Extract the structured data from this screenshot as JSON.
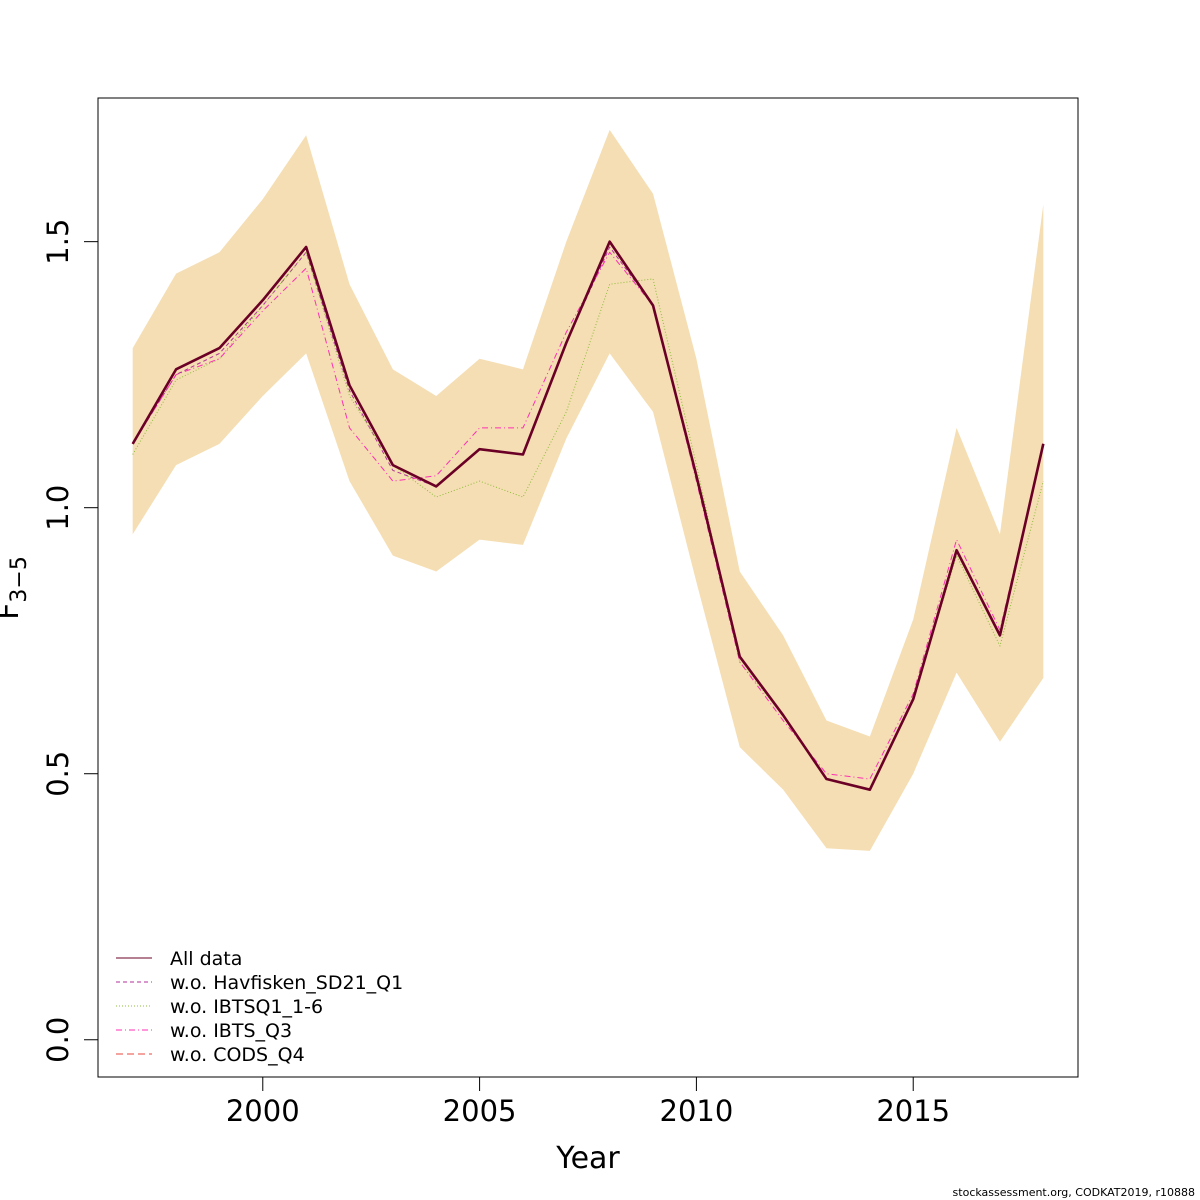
{
  "chart_data": {
    "type": "line",
    "xlabel": "Year",
    "ylabel_main": "F",
    "ylabel_sub": "3−5",
    "xlim": [
      1996.2,
      2018.8
    ],
    "ylim": [
      -0.07,
      1.77
    ],
    "x_ticks": [
      2000,
      2005,
      2010,
      2015
    ],
    "y_ticks": [
      0.0,
      0.5,
      1.0,
      1.5
    ],
    "y_tick_labels": [
      "0.0",
      "0.5",
      "1.0",
      "1.5"
    ],
    "x": [
      1997,
      1998,
      1999,
      2000,
      2001,
      2002,
      2003,
      2004,
      2005,
      2006,
      2007,
      2008,
      2009,
      2010,
      2011,
      2012,
      2013,
      2014,
      2015,
      2016,
      2017,
      2018
    ],
    "band": {
      "color": "#f5deb3",
      "upper": [
        1.3,
        1.44,
        1.48,
        1.58,
        1.7,
        1.42,
        1.26,
        1.21,
        1.28,
        1.26,
        1.5,
        1.71,
        1.59,
        1.28,
        0.88,
        0.76,
        0.6,
        0.57,
        0.79,
        1.15,
        0.95,
        1.57
      ],
      "lower": [
        0.95,
        1.08,
        1.12,
        1.21,
        1.29,
        1.05,
        0.91,
        0.88,
        0.94,
        0.93,
        1.13,
        1.29,
        1.18,
        0.86,
        0.55,
        0.47,
        0.36,
        0.355,
        0.5,
        0.69,
        0.56,
        0.68
      ]
    },
    "series": [
      {
        "name": "All data",
        "color": "#6b0026",
        "dash": "",
        "width": 2.6,
        "values": [
          1.12,
          1.26,
          1.3,
          1.39,
          1.49,
          1.23,
          1.08,
          1.04,
          1.11,
          1.1,
          1.31,
          1.5,
          1.38,
          1.06,
          0.72,
          0.61,
          0.49,
          0.47,
          0.64,
          0.92,
          0.76,
          1.12
        ]
      },
      {
        "name": "w.o. Havfisken_SD21_Q1",
        "color": "#b1319b",
        "dash": "4,3",
        "width": 1,
        "values": [
          1.12,
          1.25,
          1.29,
          1.38,
          1.48,
          1.22,
          1.07,
          1.04,
          1.11,
          1.1,
          1.31,
          1.49,
          1.38,
          1.06,
          0.72,
          0.61,
          0.49,
          0.47,
          0.64,
          0.92,
          0.76,
          1.12
        ]
      },
      {
        "name": "w.o. IBTSQ1_1-6",
        "color": "#8fbc3c",
        "dash": "1,2",
        "width": 1,
        "values": [
          1.1,
          1.24,
          1.28,
          1.38,
          1.48,
          1.21,
          1.08,
          1.02,
          1.05,
          1.02,
          1.18,
          1.42,
          1.43,
          1.08,
          0.71,
          0.61,
          0.49,
          0.47,
          0.64,
          0.91,
          0.74,
          1.05
        ]
      },
      {
        "name": "w.o. IBTS_Q3",
        "color": "#ff2fb4",
        "dash": "6,3,1,3",
        "width": 1,
        "values": [
          1.12,
          1.25,
          1.28,
          1.37,
          1.45,
          1.15,
          1.05,
          1.06,
          1.15,
          1.15,
          1.33,
          1.48,
          1.38,
          1.05,
          0.71,
          0.6,
          0.5,
          0.49,
          0.65,
          0.94,
          0.77,
          1.12
        ]
      },
      {
        "name": "w.o. CODS_Q4",
        "color": "#e8473c",
        "dash": "7,4",
        "width": 1,
        "values": [
          1.12,
          1.26,
          1.3,
          1.39,
          1.49,
          1.23,
          1.08,
          1.04,
          1.11,
          1.1,
          1.31,
          1.5,
          1.38,
          1.06,
          0.72,
          0.61,
          0.49,
          0.47,
          0.64,
          0.92,
          0.76,
          1.12
        ]
      }
    ],
    "legend_position": "bottom-left",
    "legend_line_color": "#e8473c",
    "legend_labels": [
      "All data",
      "w.o. Havfisken_SD21_Q1",
      "w.o. IBTSQ1_1-6",
      "w.o. IBTS_Q3",
      "w.o. CODS_Q4"
    ],
    "footer": "stockassessment.org, CODKAT2019, r10888"
  }
}
